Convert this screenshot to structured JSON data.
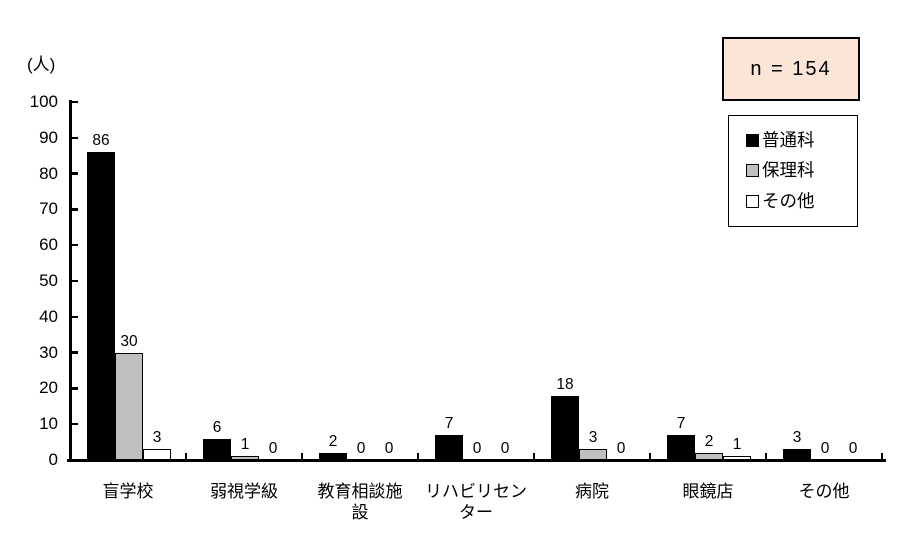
{
  "annotation": {
    "text": "n = 154",
    "bg_color": "#FBE5D6"
  },
  "legend": {
    "items": [
      {
        "label": "普通科",
        "color": "#000000"
      },
      {
        "label": "保理科",
        "color": "#BFBFBF"
      },
      {
        "label": "その他",
        "color": "#FFFFFF"
      }
    ]
  },
  "chart_data": {
    "type": "bar",
    "title": "",
    "xlabel": "",
    "ylabel": "(人)",
    "ylim": [
      0,
      100
    ],
    "ytick_step": 10,
    "grid": false,
    "value_labels_shown": true,
    "legend_position": "top-right",
    "annotation": "n = 154",
    "categories": [
      "盲学校",
      "弱視学級",
      "教育相談施設",
      "リハビリセンター",
      "病院",
      "眼鏡店",
      "その他"
    ],
    "categories_display": [
      "盲学校",
      "弱視学級",
      "教育相談施\n設",
      "リハビリセン\nター",
      "病院",
      "眼鏡店",
      "その他"
    ],
    "series": [
      {
        "name": "普通科",
        "color": "#000000",
        "values": [
          86,
          6,
          2,
          7,
          18,
          7,
          3
        ]
      },
      {
        "name": "保理科",
        "color": "#BFBFBF",
        "values": [
          30,
          1,
          0,
          0,
          3,
          2,
          0
        ]
      },
      {
        "name": "その他",
        "color": "#FFFFFF",
        "values": [
          3,
          0,
          0,
          0,
          0,
          1,
          0
        ]
      }
    ]
  }
}
